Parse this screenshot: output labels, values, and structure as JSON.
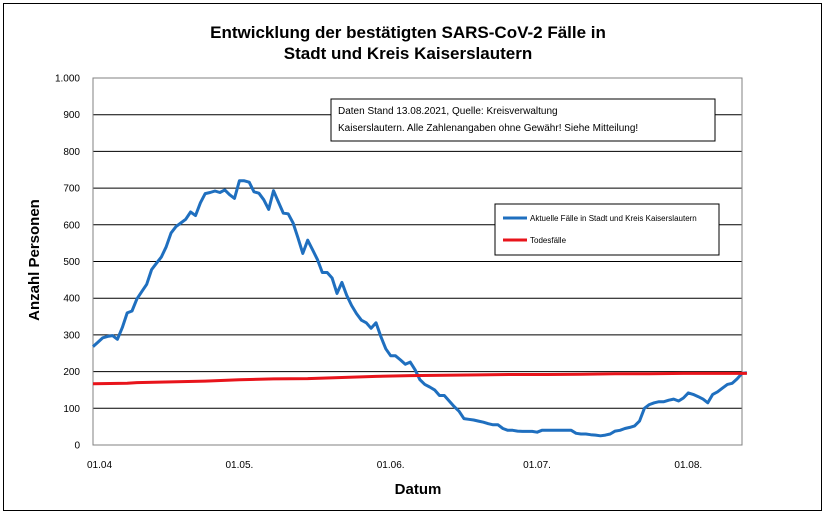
{
  "chart_data": {
    "type": "line",
    "title_line1": "Entwicklung der bestätigten SARS-CoV-2 Fälle in",
    "title_line2": "Stadt und Kreis Kaiserslautern",
    "xlabel": "Datum",
    "ylabel": "Anzahl Personen",
    "ylim": [
      0,
      1000
    ],
    "yticks": [
      {
        "value": 0,
        "label": "0"
      },
      {
        "value": 100,
        "label": "100"
      },
      {
        "value": 200,
        "label": "200"
      },
      {
        "value": 300,
        "label": "300"
      },
      {
        "value": 400,
        "label": "400"
      },
      {
        "value": 500,
        "label": "500"
      },
      {
        "value": 600,
        "label": "600"
      },
      {
        "value": 700,
        "label": "700"
      },
      {
        "value": 800,
        "label": "800"
      },
      {
        "value": 900,
        "label": "900"
      },
      {
        "value": 1000,
        "label": "1.000"
      }
    ],
    "xlim": [
      "2021-04-01",
      "2021-08-12"
    ],
    "xticks": [
      {
        "date": "2021-04-01",
        "label": "01.04"
      },
      {
        "date": "2021-05-01",
        "label": "01.05."
      },
      {
        "date": "2021-06-01",
        "label": "01.06."
      },
      {
        "date": "2021-07-01",
        "label": "01.07."
      },
      {
        "date": "2021-08-01",
        "label": "01.08."
      }
    ],
    "grid": "horizontal",
    "legend_position": "right",
    "note_line1": "Daten Stand 13.08.2021, Quelle: Kreisverwaltung",
    "note_line2": "Kaiserslautern. Alle Zahlenangaben ohne Gewähr! Siehe Mitteilung!",
    "series": [
      {
        "name": "Aktuelle Fälle in Stadt und Kreis Kaiserslautern",
        "color": "#1f6fbf",
        "points": [
          [
            "2021-04-01",
            268
          ],
          [
            "2021-04-02",
            280
          ],
          [
            "2021-04-03",
            292
          ],
          [
            "2021-04-04",
            296
          ],
          [
            "2021-04-05",
            298
          ],
          [
            "2021-04-06",
            288
          ],
          [
            "2021-04-07",
            320
          ],
          [
            "2021-04-08",
            360
          ],
          [
            "2021-04-09",
            365
          ],
          [
            "2021-04-10",
            398
          ],
          [
            "2021-04-11",
            418
          ],
          [
            "2021-04-12",
            438
          ],
          [
            "2021-04-13",
            478
          ],
          [
            "2021-04-14",
            495
          ],
          [
            "2021-04-15",
            512
          ],
          [
            "2021-04-16",
            540
          ],
          [
            "2021-04-17",
            578
          ],
          [
            "2021-04-18",
            595
          ],
          [
            "2021-04-19",
            605
          ],
          [
            "2021-04-20",
            615
          ],
          [
            "2021-04-21",
            635
          ],
          [
            "2021-04-22",
            625
          ],
          [
            "2021-04-23",
            660
          ],
          [
            "2021-04-24",
            685
          ],
          [
            "2021-04-25",
            688
          ],
          [
            "2021-04-26",
            692
          ],
          [
            "2021-04-27",
            688
          ],
          [
            "2021-04-28",
            695
          ],
          [
            "2021-04-29",
            682
          ],
          [
            "2021-04-30",
            672
          ],
          [
            "2021-05-01",
            720
          ],
          [
            "2021-05-02",
            720
          ],
          [
            "2021-05-03",
            716
          ],
          [
            "2021-05-04",
            690
          ],
          [
            "2021-05-05",
            686
          ],
          [
            "2021-05-06",
            668
          ],
          [
            "2021-05-07",
            642
          ],
          [
            "2021-05-08",
            693
          ],
          [
            "2021-05-09",
            662
          ],
          [
            "2021-05-10",
            632
          ],
          [
            "2021-05-11",
            630
          ],
          [
            "2021-05-12",
            605
          ],
          [
            "2021-05-13",
            565
          ],
          [
            "2021-05-14",
            522
          ],
          [
            "2021-05-15",
            558
          ],
          [
            "2021-05-16",
            532
          ],
          [
            "2021-05-17",
            505
          ],
          [
            "2021-05-18",
            470
          ],
          [
            "2021-05-19",
            470
          ],
          [
            "2021-05-20",
            455
          ],
          [
            "2021-05-21",
            413
          ],
          [
            "2021-05-22",
            443
          ],
          [
            "2021-05-23",
            408
          ],
          [
            "2021-05-24",
            380
          ],
          [
            "2021-05-25",
            358
          ],
          [
            "2021-05-26",
            340
          ],
          [
            "2021-05-27",
            333
          ],
          [
            "2021-05-28",
            318
          ],
          [
            "2021-05-29",
            333
          ],
          [
            "2021-05-30",
            295
          ],
          [
            "2021-05-31",
            262
          ],
          [
            "2021-06-01",
            243
          ],
          [
            "2021-06-02",
            243
          ],
          [
            "2021-06-03",
            232
          ],
          [
            "2021-06-04",
            220
          ],
          [
            "2021-06-05",
            226
          ],
          [
            "2021-06-06",
            205
          ],
          [
            "2021-06-07",
            178
          ],
          [
            "2021-06-08",
            165
          ],
          [
            "2021-06-09",
            158
          ],
          [
            "2021-06-10",
            150
          ],
          [
            "2021-06-11",
            135
          ],
          [
            "2021-06-12",
            135
          ],
          [
            "2021-06-13",
            120
          ],
          [
            "2021-06-14",
            105
          ],
          [
            "2021-06-15",
            92
          ],
          [
            "2021-06-16",
            72
          ],
          [
            "2021-06-17",
            70
          ],
          [
            "2021-06-18",
            68
          ],
          [
            "2021-06-19",
            65
          ],
          [
            "2021-06-20",
            62
          ],
          [
            "2021-06-21",
            58
          ],
          [
            "2021-06-22",
            55
          ],
          [
            "2021-06-23",
            55
          ],
          [
            "2021-06-24",
            45
          ],
          [
            "2021-06-25",
            40
          ],
          [
            "2021-06-26",
            40
          ],
          [
            "2021-06-27",
            38
          ],
          [
            "2021-06-28",
            37
          ],
          [
            "2021-06-29",
            37
          ],
          [
            "2021-06-30",
            37
          ],
          [
            "2021-07-01",
            35
          ],
          [
            "2021-07-02",
            40
          ],
          [
            "2021-07-03",
            40
          ],
          [
            "2021-07-04",
            40
          ],
          [
            "2021-07-05",
            40
          ],
          [
            "2021-07-06",
            40
          ],
          [
            "2021-07-07",
            40
          ],
          [
            "2021-07-08",
            40
          ],
          [
            "2021-07-09",
            32
          ],
          [
            "2021-07-10",
            30
          ],
          [
            "2021-07-11",
            30
          ],
          [
            "2021-07-12",
            28
          ],
          [
            "2021-07-13",
            27
          ],
          [
            "2021-07-14",
            25
          ],
          [
            "2021-07-15",
            27
          ],
          [
            "2021-07-16",
            30
          ],
          [
            "2021-07-17",
            38
          ],
          [
            "2021-07-18",
            40
          ],
          [
            "2021-07-19",
            45
          ],
          [
            "2021-07-20",
            48
          ],
          [
            "2021-07-21",
            52
          ],
          [
            "2021-07-22",
            65
          ],
          [
            "2021-07-23",
            100
          ],
          [
            "2021-07-24",
            110
          ],
          [
            "2021-07-25",
            115
          ],
          [
            "2021-07-26",
            118
          ],
          [
            "2021-07-27",
            118
          ],
          [
            "2021-07-28",
            122
          ],
          [
            "2021-07-29",
            125
          ],
          [
            "2021-07-30",
            120
          ],
          [
            "2021-07-31",
            128
          ],
          [
            "2021-08-01",
            142
          ],
          [
            "2021-08-02",
            138
          ],
          [
            "2021-08-03",
            132
          ],
          [
            "2021-08-04",
            125
          ],
          [
            "2021-08-05",
            115
          ],
          [
            "2021-08-06",
            138
          ],
          [
            "2021-08-07",
            145
          ],
          [
            "2021-08-08",
            155
          ],
          [
            "2021-08-09",
            165
          ],
          [
            "2021-08-10",
            168
          ],
          [
            "2021-08-11",
            180
          ],
          [
            "2021-08-12",
            195
          ],
          [
            "2021-08-13",
            197
          ]
        ]
      },
      {
        "name": "Todesfälle",
        "color": "#e8141b",
        "points": [
          [
            "2021-04-01",
            167
          ],
          [
            "2021-04-08",
            168
          ],
          [
            "2021-04-10",
            170
          ],
          [
            "2021-04-17",
            172
          ],
          [
            "2021-04-24",
            174
          ],
          [
            "2021-05-01",
            178
          ],
          [
            "2021-05-08",
            180
          ],
          [
            "2021-05-15",
            181
          ],
          [
            "2021-05-22",
            184
          ],
          [
            "2021-05-29",
            187
          ],
          [
            "2021-06-05",
            189
          ],
          [
            "2021-06-12",
            190
          ],
          [
            "2021-06-19",
            191
          ],
          [
            "2021-06-26",
            192
          ],
          [
            "2021-07-03",
            192
          ],
          [
            "2021-07-10",
            193
          ],
          [
            "2021-07-17",
            194
          ],
          [
            "2021-07-24",
            194
          ],
          [
            "2021-07-31",
            195
          ],
          [
            "2021-08-07",
            195
          ],
          [
            "2021-08-13",
            195
          ]
        ]
      }
    ]
  }
}
